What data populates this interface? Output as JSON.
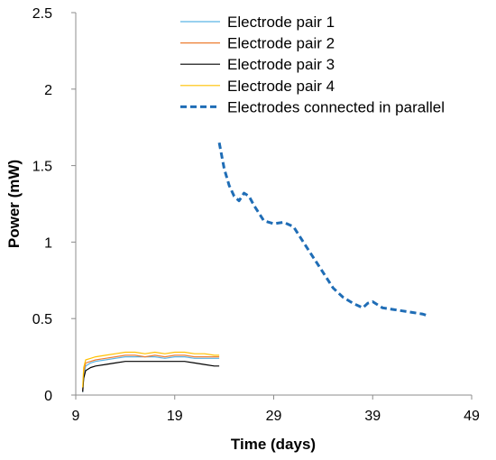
{
  "chart_data": {
    "type": "line",
    "title": "",
    "xlabel": "Time (days)",
    "ylabel": "Power (mW)",
    "xlim": [
      9,
      49
    ],
    "ylim": [
      0,
      2.5
    ],
    "xticks": [
      9,
      19,
      29,
      39,
      49
    ],
    "yticks": [
      0,
      0.5,
      1,
      1.5,
      2,
      2.5
    ],
    "ytick_labels": [
      "0",
      "0.5",
      "1",
      "1.5",
      "2",
      "2.5"
    ],
    "grid": false,
    "legend_position": "top-center",
    "series": [
      {
        "name": "Electrode pair 1",
        "color": "#5ab4e5",
        "style": "solid",
        "x": [
          9.7,
          9.8,
          10.0,
          10.5,
          11,
          12,
          13,
          14,
          15,
          16,
          17,
          18,
          19,
          20,
          21,
          22,
          23,
          23.5
        ],
        "y": [
          0.02,
          0.12,
          0.19,
          0.21,
          0.22,
          0.23,
          0.24,
          0.25,
          0.25,
          0.25,
          0.25,
          0.24,
          0.25,
          0.25,
          0.24,
          0.24,
          0.24,
          0.24
        ]
      },
      {
        "name": "Electrode pair 2",
        "color": "#ed7d31",
        "style": "solid",
        "x": [
          9.7,
          9.8,
          10.0,
          10.5,
          11,
          12,
          13,
          14,
          15,
          16,
          17,
          18,
          19,
          20,
          21,
          22,
          23,
          23.5
        ],
        "y": [
          0.03,
          0.15,
          0.21,
          0.22,
          0.23,
          0.24,
          0.25,
          0.26,
          0.26,
          0.25,
          0.26,
          0.25,
          0.26,
          0.26,
          0.25,
          0.25,
          0.25,
          0.25
        ]
      },
      {
        "name": "Electrode pair 3",
        "color": "#000000",
        "style": "solid",
        "x": [
          9.7,
          9.8,
          10.0,
          10.5,
          11,
          12,
          13,
          14,
          15,
          16,
          17,
          18,
          19,
          20,
          21,
          22,
          23,
          23.5
        ],
        "y": [
          0.02,
          0.11,
          0.16,
          0.18,
          0.19,
          0.2,
          0.21,
          0.22,
          0.22,
          0.22,
          0.22,
          0.22,
          0.22,
          0.22,
          0.21,
          0.2,
          0.19,
          0.19
        ]
      },
      {
        "name": "Electrode pair 4",
        "color": "#ffc000",
        "style": "solid",
        "x": [
          9.7,
          9.8,
          10.0,
          10.5,
          11,
          12,
          13,
          14,
          15,
          16,
          17,
          18,
          19,
          20,
          21,
          22,
          23,
          23.5
        ],
        "y": [
          0.05,
          0.18,
          0.23,
          0.24,
          0.25,
          0.26,
          0.27,
          0.28,
          0.28,
          0.27,
          0.28,
          0.27,
          0.28,
          0.28,
          0.27,
          0.27,
          0.26,
          0.26
        ]
      },
      {
        "name": "Electrodes connected in parallel",
        "color": "#1f6db6",
        "style": "dashed",
        "x": [
          23.5,
          24,
          24.5,
          25,
          25.5,
          26,
          26.5,
          27,
          28,
          29,
          30,
          31,
          32,
          33,
          34,
          35,
          36,
          37,
          38,
          38.5,
          39,
          40,
          41,
          42,
          43,
          44,
          44.5
        ],
        "y": [
          1.65,
          1.48,
          1.37,
          1.3,
          1.27,
          1.32,
          1.3,
          1.24,
          1.14,
          1.12,
          1.13,
          1.1,
          1.0,
          0.9,
          0.8,
          0.7,
          0.64,
          0.6,
          0.57,
          0.6,
          0.61,
          0.57,
          0.56,
          0.55,
          0.54,
          0.53,
          0.52
        ]
      }
    ]
  }
}
